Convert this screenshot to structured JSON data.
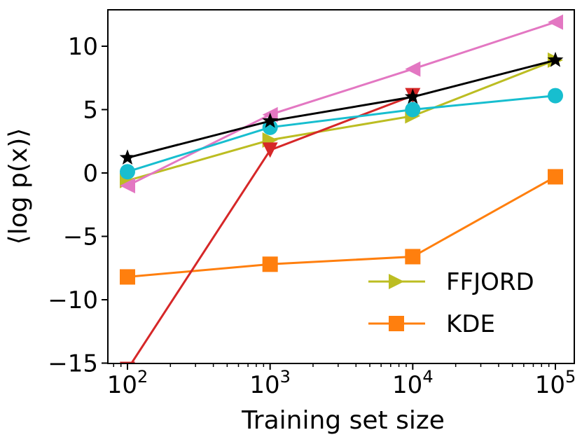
{
  "chart_data": {
    "type": "line",
    "title": "",
    "xlabel": "Training set size",
    "ylabel": "⟨log p(x)⟩",
    "xscale": "log",
    "x": [
      100,
      1000,
      10000,
      100000
    ],
    "xticks": [
      {
        "base": "10",
        "exp": "2"
      },
      {
        "base": "10",
        "exp": "3"
      },
      {
        "base": "10",
        "exp": "4"
      },
      {
        "base": "10",
        "exp": "5"
      }
    ],
    "yticks": [
      "10",
      "5",
      "0",
      "−5",
      "−10",
      "−15"
    ],
    "ytick_values": [
      10,
      5,
      0,
      -5,
      -10,
      -15
    ],
    "ylim": [
      -15,
      13
    ],
    "grid": false,
    "legend_position": "lower-right",
    "series": [
      {
        "name": "FFJORD",
        "color": "#bcbd22",
        "marker": "triangle-right",
        "values": [
          -0.6,
          2.6,
          4.5,
          8.9
        ],
        "in_legend": true
      },
      {
        "name": "KDE",
        "color": "#ff7f0e",
        "marker": "square",
        "values": [
          -8.2,
          -7.2,
          -6.6,
          -0.3
        ],
        "in_legend": true
      },
      {
        "name": "",
        "color": "#e377c2",
        "marker": "triangle-left",
        "values": [
          -1.0,
          4.6,
          8.2,
          11.9
        ],
        "in_legend": false
      },
      {
        "name": "",
        "color": "#d62728",
        "marker": "triangle-down",
        "values": [
          -15.5,
          1.8,
          6.1,
          null
        ],
        "in_legend": false
      },
      {
        "name": "",
        "color": "#17becf",
        "marker": "circle",
        "values": [
          0.1,
          3.6,
          5.0,
          6.1
        ],
        "in_legend": false
      },
      {
        "name": "",
        "color": "#000000",
        "marker": "star",
        "values": [
          1.2,
          4.1,
          6.0,
          8.9
        ],
        "in_legend": false
      }
    ]
  }
}
